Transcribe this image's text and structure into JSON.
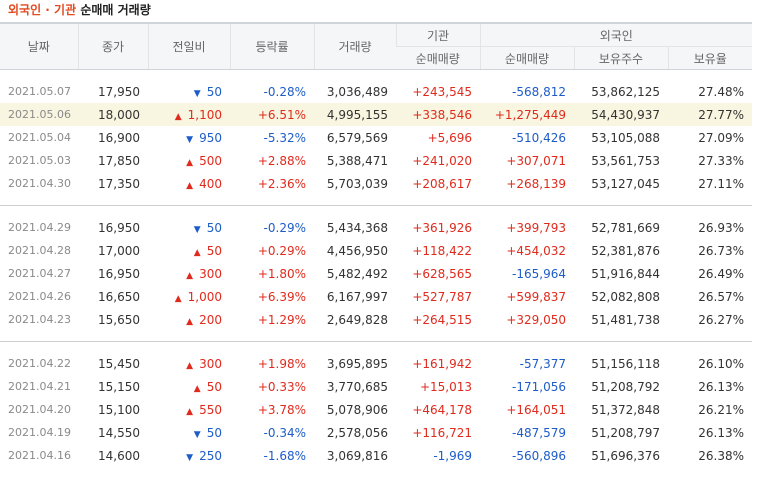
{
  "title": {
    "part1": "외국인",
    "sep": " · ",
    "part2": "기관",
    "part3": " 순매매 거래량"
  },
  "headers": {
    "date": "날짜",
    "close": "종가",
    "change": "전일비",
    "rate": "등락률",
    "volume": "거래량",
    "inst_group": "기관",
    "inst_net": "순매매량",
    "frgn_group": "외국인",
    "frgn_net": "순매매량",
    "frgn_hold": "보유주수",
    "frgn_ratio": "보유율"
  },
  "colors": {
    "up": "#e02a1d",
    "down": "#1e5dc8",
    "highlight_row": "#f8f6e0"
  },
  "groups": [
    [
      {
        "date": "2021.05.07",
        "close": "17,950",
        "dir": "down",
        "change": "50",
        "rate": "-0.28%",
        "volume": "3,036,489",
        "inst": "+243,545",
        "frgn": "-568,812",
        "hold": "53,862,125",
        "ratio": "27.48%"
      },
      {
        "date": "2021.05.06",
        "close": "18,000",
        "dir": "up",
        "change": "1,100",
        "rate": "+6.51%",
        "volume": "4,995,155",
        "inst": "+338,546",
        "frgn": "+1,275,449",
        "hold": "54,430,937",
        "ratio": "27.77%",
        "highlight": true
      },
      {
        "date": "2021.05.04",
        "close": "16,900",
        "dir": "down",
        "change": "950",
        "rate": "-5.32%",
        "volume": "6,579,569",
        "inst": "+5,696",
        "frgn": "-510,426",
        "hold": "53,105,088",
        "ratio": "27.09%"
      },
      {
        "date": "2021.05.03",
        "close": "17,850",
        "dir": "up",
        "change": "500",
        "rate": "+2.88%",
        "volume": "5,388,471",
        "inst": "+241,020",
        "frgn": "+307,071",
        "hold": "53,561,753",
        "ratio": "27.33%"
      },
      {
        "date": "2021.04.30",
        "close": "17,350",
        "dir": "up",
        "change": "400",
        "rate": "+2.36%",
        "volume": "5,703,039",
        "inst": "+208,617",
        "frgn": "+268,139",
        "hold": "53,127,045",
        "ratio": "27.11%"
      }
    ],
    [
      {
        "date": "2021.04.29",
        "close": "16,950",
        "dir": "down",
        "change": "50",
        "rate": "-0.29%",
        "volume": "5,434,368",
        "inst": "+361,926",
        "frgn": "+399,793",
        "hold": "52,781,669",
        "ratio": "26.93%"
      },
      {
        "date": "2021.04.28",
        "close": "17,000",
        "dir": "up",
        "change": "50",
        "rate": "+0.29%",
        "volume": "4,456,950",
        "inst": "+118,422",
        "frgn": "+454,032",
        "hold": "52,381,876",
        "ratio": "26.73%"
      },
      {
        "date": "2021.04.27",
        "close": "16,950",
        "dir": "up",
        "change": "300",
        "rate": "+1.80%",
        "volume": "5,482,492",
        "inst": "+628,565",
        "frgn": "-165,964",
        "hold": "51,916,844",
        "ratio": "26.49%"
      },
      {
        "date": "2021.04.26",
        "close": "16,650",
        "dir": "up",
        "change": "1,000",
        "rate": "+6.39%",
        "volume": "6,167,997",
        "inst": "+527,787",
        "frgn": "+599,837",
        "hold": "52,082,808",
        "ratio": "26.57%"
      },
      {
        "date": "2021.04.23",
        "close": "15,650",
        "dir": "up",
        "change": "200",
        "rate": "+1.29%",
        "volume": "2,649,828",
        "inst": "+264,515",
        "frgn": "+329,050",
        "hold": "51,481,738",
        "ratio": "26.27%"
      }
    ],
    [
      {
        "date": "2021.04.22",
        "close": "15,450",
        "dir": "up",
        "change": "300",
        "rate": "+1.98%",
        "volume": "3,695,895",
        "inst": "+161,942",
        "frgn": "-57,377",
        "hold": "51,156,118",
        "ratio": "26.10%"
      },
      {
        "date": "2021.04.21",
        "close": "15,150",
        "dir": "up",
        "change": "50",
        "rate": "+0.33%",
        "volume": "3,770,685",
        "inst": "+15,013",
        "frgn": "-171,056",
        "hold": "51,208,792",
        "ratio": "26.13%"
      },
      {
        "date": "2021.04.20",
        "close": "15,100",
        "dir": "up",
        "change": "550",
        "rate": "+3.78%",
        "volume": "5,078,906",
        "inst": "+464,178",
        "frgn": "+164,051",
        "hold": "51,372,848",
        "ratio": "26.21%"
      },
      {
        "date": "2021.04.19",
        "close": "14,550",
        "dir": "down",
        "change": "50",
        "rate": "-0.34%",
        "volume": "2,578,056",
        "inst": "+116,721",
        "frgn": "-487,579",
        "hold": "51,208,797",
        "ratio": "26.13%"
      },
      {
        "date": "2021.04.16",
        "close": "14,600",
        "dir": "down",
        "change": "250",
        "rate": "-1.68%",
        "volume": "3,069,816",
        "inst": "-1,969",
        "frgn": "-560,896",
        "hold": "51,696,376",
        "ratio": "26.38%"
      }
    ]
  ]
}
